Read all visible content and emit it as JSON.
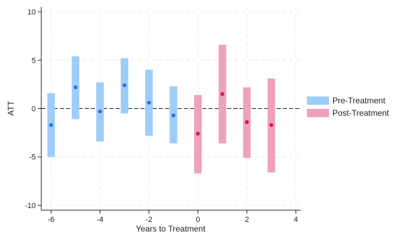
{
  "chart_data": {
    "type": "scatter",
    "xlabel": "Years to Treatment",
    "ylabel": "ATT",
    "xlim": [
      -6.4,
      4.2
    ],
    "ylim": [
      -10.5,
      10.5
    ],
    "xticks": [
      -6,
      -4,
      -2,
      0,
      2,
      4
    ],
    "yticks": [
      -10,
      -5,
      0,
      5,
      10
    ],
    "grid": true,
    "reference_line_y": 0,
    "legend_position": "right",
    "series": [
      {
        "name": "Pre-Treatment",
        "color": "#9ecdfa",
        "point_color": "#1f78e0",
        "points": [
          {
            "x": -6,
            "y": -1.7,
            "lo": -5.0,
            "hi": 1.6
          },
          {
            "x": -5,
            "y": 2.2,
            "lo": -1.1,
            "hi": 5.4
          },
          {
            "x": -4,
            "y": -0.3,
            "lo": -3.4,
            "hi": 2.7
          },
          {
            "x": -3,
            "y": 2.4,
            "lo": -0.5,
            "hi": 5.2
          },
          {
            "x": -2,
            "y": 0.6,
            "lo": -2.8,
            "hi": 4.0
          },
          {
            "x": -1,
            "y": -0.7,
            "lo": -3.6,
            "hi": 2.3
          }
        ]
      },
      {
        "name": "Post-Treatment",
        "color": "#eea2bb",
        "point_color": "#d6154f",
        "points": [
          {
            "x": 0,
            "y": -2.6,
            "lo": -6.7,
            "hi": 1.4
          },
          {
            "x": 1,
            "y": 1.5,
            "lo": -3.6,
            "hi": 6.6
          },
          {
            "x": 2,
            "y": -1.4,
            "lo": -5.1,
            "hi": 2.2
          },
          {
            "x": 3,
            "y": -1.7,
            "lo": -6.6,
            "hi": 3.1
          }
        ]
      }
    ]
  }
}
